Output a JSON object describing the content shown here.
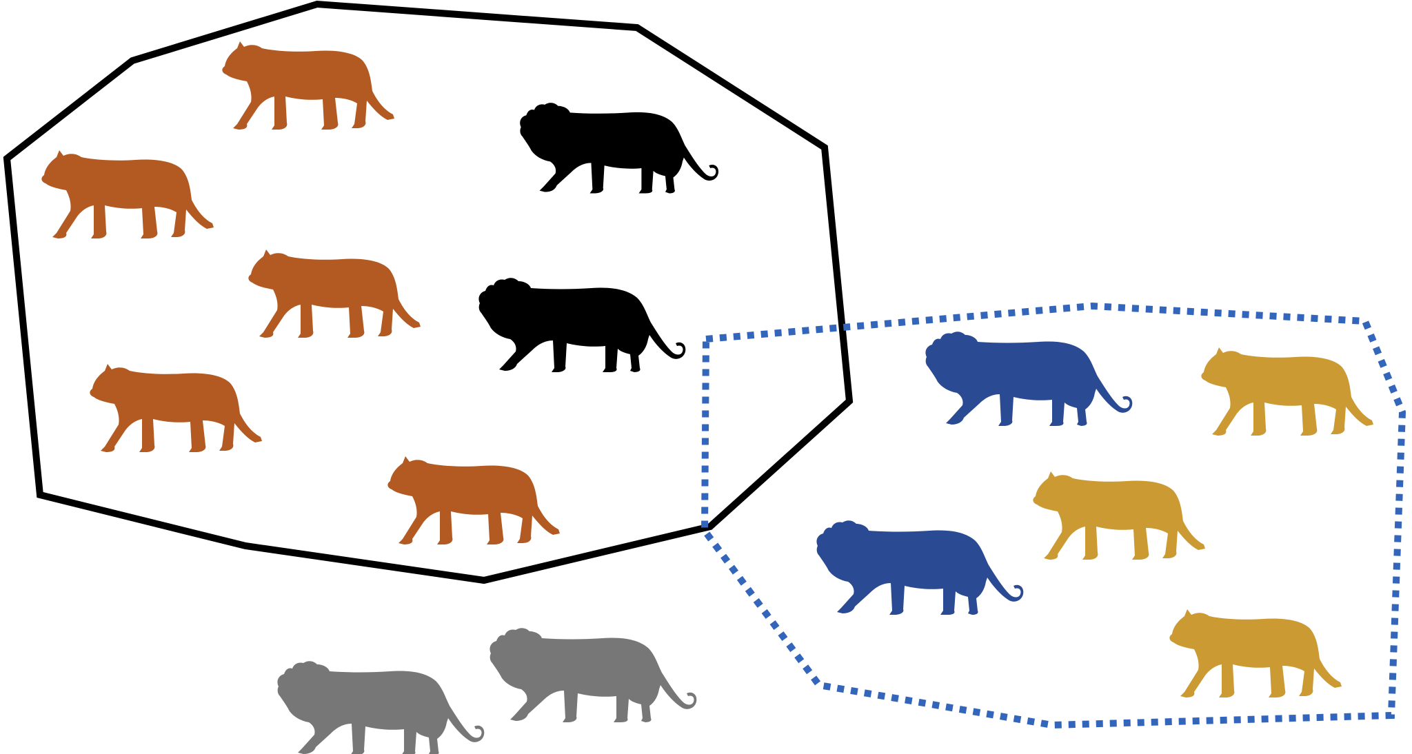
{
  "colors": {
    "background": "#ffffff",
    "pride_a_outline": "#000000",
    "pride_b_outline": "#3366bb",
    "lioness_pride_a": "#b35a22",
    "lion_pride_a": "#000000",
    "lion_pride_b": "#2a4a94",
    "lioness_pride_b": "#cc9a33",
    "lone_lion": "#777777"
  },
  "groups": [
    {
      "id": "pride-a",
      "outline": "solid",
      "members": {
        "lionesses": 5,
        "males": 2
      }
    },
    {
      "id": "pride-b",
      "outline": "dotted",
      "members": {
        "lionesses": 3,
        "males": 2
      }
    },
    {
      "id": "outsiders",
      "outline": "none",
      "members": {
        "males": 2
      }
    }
  ],
  "icons": {
    "male": "lion-silhouette-icon",
    "female": "lioness-silhouette-icon"
  }
}
